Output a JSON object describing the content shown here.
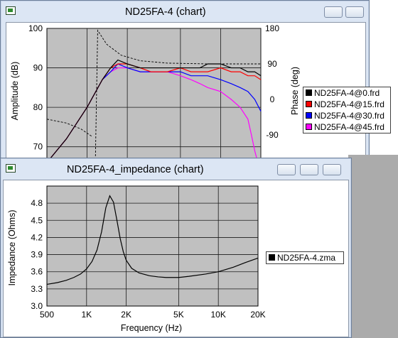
{
  "freq_window": {
    "title": "ND25FA-4 (chart)",
    "y_label": "Amplitude (dB)",
    "y2_label": "Phase (deg)",
    "y_ticks": [
      "100",
      "90",
      "80",
      "70"
    ],
    "y2_ticks": [
      "180",
      "90",
      "0",
      "-90"
    ],
    "legend": [
      {
        "label": "ND25FA-4@0.frd",
        "color": "#000000"
      },
      {
        "label": "ND25FA-4@15.frd",
        "color": "#ff0000"
      },
      {
        "label": "ND25FA-4@30.frd",
        "color": "#0000ff"
      },
      {
        "label": "ND25FA-4@45.frd",
        "color": "#ff00ff"
      }
    ]
  },
  "imp_window": {
    "title": "ND25FA-4_impedance (chart)",
    "legend": [
      {
        "label": "ND25FA-4.zma",
        "color": "#000000"
      }
    ]
  },
  "chart_data": [
    {
      "type": "line",
      "ylabel": "Amplitude (dB)",
      "y2label": "Phase (deg)",
      "ylim": [
        64,
        100
      ],
      "y2lim": [
        -180,
        180
      ],
      "y_ticks": [
        100,
        90,
        80,
        70
      ],
      "y2_ticks": [
        180,
        90,
        0,
        -90
      ],
      "x_scale": "log",
      "xlim": [
        500,
        20000
      ],
      "grid": true,
      "legend_position": "right",
      "series": [
        {
          "name": "ND25FA-4@0.frd",
          "color": "#000000",
          "x": [
            500,
            700,
            1000,
            1300,
            1500,
            1700,
            2000,
            2500,
            3000,
            4000,
            5000,
            6000,
            7000,
            8000,
            10000,
            12000,
            14000,
            16000,
            18000,
            20000
          ],
          "y": [
            66,
            72,
            80,
            87,
            90,
            92,
            91,
            90,
            90,
            90,
            90,
            90,
            90,
            91,
            91,
            90,
            90,
            89,
            89,
            88
          ]
        },
        {
          "name": "ND25FA-4@15.frd",
          "color": "#ff0000",
          "x": [
            500,
            700,
            1000,
            1300,
            1500,
            1700,
            2000,
            2500,
            3000,
            4000,
            5000,
            6000,
            7000,
            8000,
            10000,
            12000,
            14000,
            16000,
            18000,
            20000
          ],
          "y": [
            66,
            72,
            80,
            87,
            90,
            91,
            91,
            90,
            89,
            89,
            90,
            89,
            89,
            89,
            90,
            89,
            89,
            88,
            88,
            87
          ]
        },
        {
          "name": "ND25FA-4@30.frd",
          "color": "#0000ff",
          "x": [
            500,
            700,
            1000,
            1300,
            1500,
            1700,
            2000,
            2500,
            3000,
            4000,
            5000,
            6000,
            7000,
            8000,
            10000,
            12000,
            14000,
            16000,
            18000,
            20000
          ],
          "y": [
            66,
            72,
            80,
            87,
            89,
            91,
            90,
            89,
            89,
            89,
            89,
            88,
            88,
            88,
            87,
            86,
            85,
            84,
            82,
            79
          ]
        },
        {
          "name": "ND25FA-4@45.frd",
          "color": "#ff00ff",
          "x": [
            500,
            700,
            1000,
            1300,
            1500,
            1700,
            2000,
            2500,
            3000,
            4000,
            5000,
            6000,
            7000,
            8000,
            10000,
            12000,
            14000,
            16000,
            17000,
            18000,
            19000,
            20000
          ],
          "y": [
            66,
            72,
            80,
            87,
            89,
            90,
            90,
            89,
            89,
            89,
            88,
            87,
            86,
            85,
            84,
            82,
            80,
            77,
            73,
            69,
            66,
            64
          ]
        }
      ]
    },
    {
      "type": "line",
      "xlabel": "Frequency (Hz)",
      "ylabel": "Impedance (Ohms)",
      "x_scale": "log",
      "xlim": [
        500,
        20000
      ],
      "ylim": [
        3.0,
        5.1
      ],
      "x_ticks": [
        "500",
        "1K",
        "2K",
        "5K",
        "10K",
        "20K"
      ],
      "y_ticks": [
        "4.8",
        "4.5",
        "4.2",
        "3.9",
        "3.6",
        "3.3",
        "3.0"
      ],
      "grid": true,
      "legend_position": "right",
      "series": [
        {
          "name": "ND25FA-4.zma",
          "color": "#000000",
          "x": [
            500,
            600,
            700,
            800,
            900,
            1000,
            1100,
            1200,
            1300,
            1400,
            1500,
            1600,
            1700,
            1800,
            1900,
            2000,
            2200,
            2500,
            3000,
            3500,
            4000,
            5000,
            6000,
            8000,
            10000,
            13000,
            16000,
            20000
          ],
          "y": [
            3.38,
            3.41,
            3.45,
            3.5,
            3.56,
            3.65,
            3.78,
            3.98,
            4.3,
            4.72,
            4.93,
            4.82,
            4.5,
            4.18,
            3.95,
            3.8,
            3.66,
            3.58,
            3.53,
            3.51,
            3.5,
            3.5,
            3.52,
            3.56,
            3.6,
            3.68,
            3.76,
            3.84
          ]
        }
      ]
    }
  ]
}
